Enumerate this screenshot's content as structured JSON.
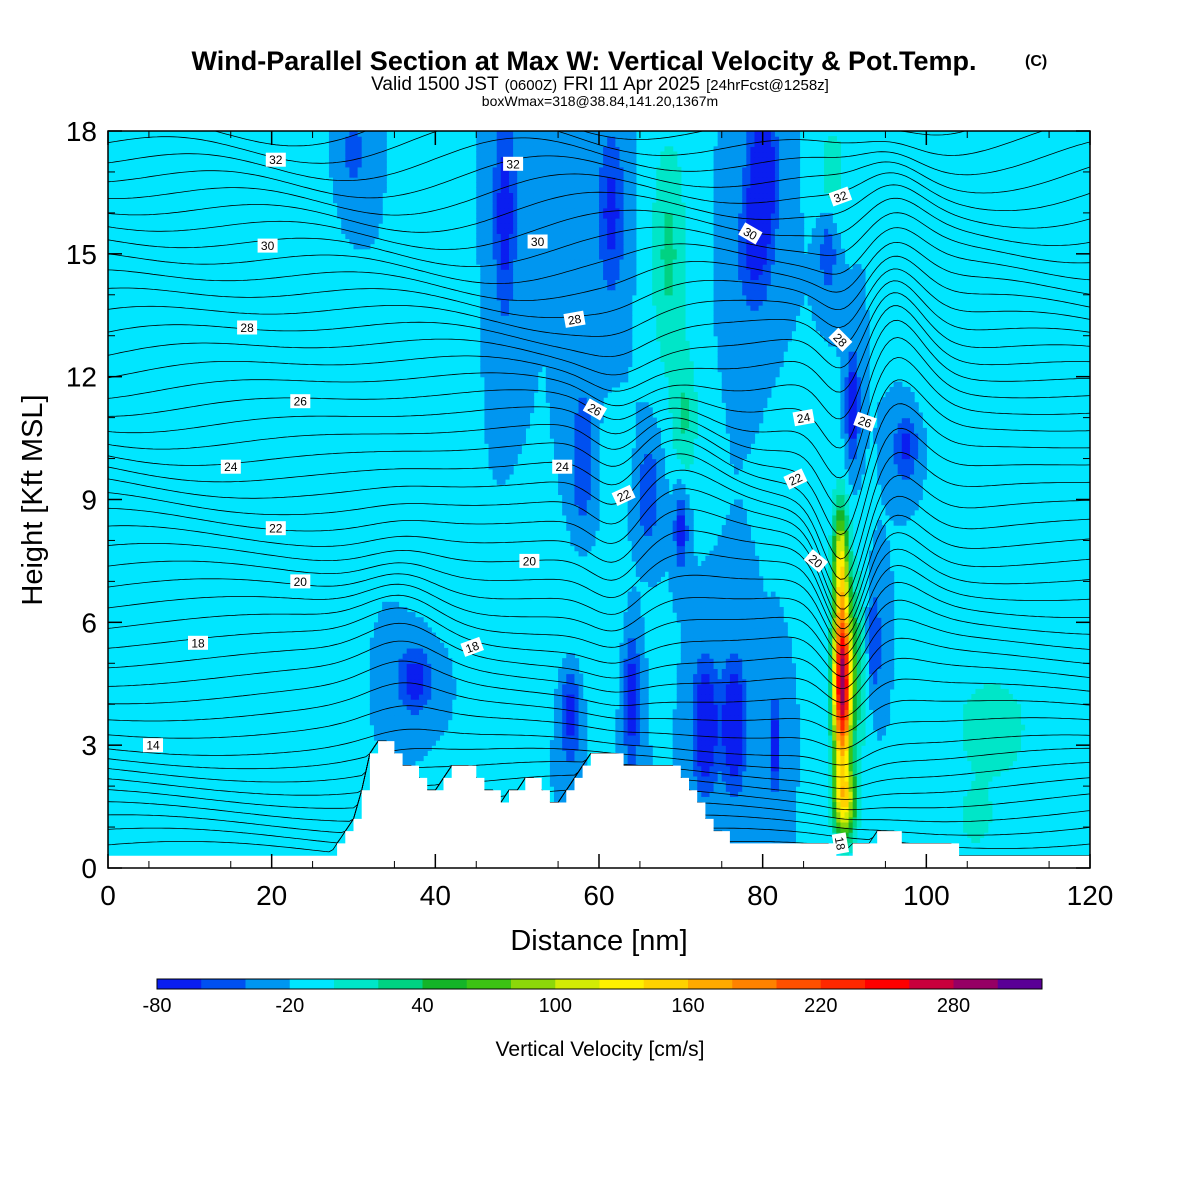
{
  "title": {
    "main": "Wind-Parallel Section at Max W: Vertical Velocity & Pot.Temp.",
    "copyright": "(C)",
    "valid_a": "Valid 1500 JST",
    "valid_b": "(0600Z)",
    "valid_c": "FRI 11 Apr 2025",
    "valid_d": "[24hrFcst@1258z]",
    "box": "boxWmax=318@38.84,141.20,1367m"
  },
  "chart_data": {
    "type": "heatmap",
    "title": "Wind-Parallel Section at Max W: Vertical Velocity & Pot.Temp.",
    "xlabel": "Distance [nm]",
    "ylabel": "Height [Kft MSL]",
    "xlim": [
      0,
      120
    ],
    "ylim": [
      0,
      18
    ],
    "x_ticks": [
      "0",
      "20",
      "40",
      "60",
      "80",
      "100",
      "120"
    ],
    "y_ticks": [
      "0",
      "3",
      "6",
      "9",
      "12",
      "15",
      "18"
    ],
    "colorbar": {
      "label": "Vertical Velocity [cm/s]",
      "tick_labels": [
        "-80",
        "-20",
        "40",
        "100",
        "160",
        "220",
        "280"
      ],
      "levels": [
        -80,
        -60,
        -40,
        -20,
        0,
        20,
        40,
        60,
        80,
        100,
        120,
        140,
        160,
        180,
        200,
        220,
        240,
        260,
        280,
        300,
        320
      ],
      "colors": [
        "#0a1ef0",
        "#0050f0",
        "#0096f0",
        "#00e6ff",
        "#00e6c8",
        "#00d282",
        "#14b428",
        "#3cc314",
        "#8cd70a",
        "#d2eb05",
        "#fff000",
        "#ffd200",
        "#ffaa00",
        "#ff8200",
        "#ff5000",
        "#ff2800",
        "#ff0000",
        "#c8003c",
        "#960064",
        "#5a0096"
      ]
    },
    "background_level": -20,
    "vertical_velocity_features": [
      {
        "x": 89.7,
        "y": 4.5,
        "sx": 1.1,
        "sy": 2.1,
        "w": 300
      },
      {
        "x": 89.5,
        "y": 7.6,
        "sx": 0.9,
        "sy": 1.4,
        "w": 120
      },
      {
        "x": 90.0,
        "y": 1.6,
        "sx": 1.4,
        "sy": 0.9,
        "w": 130
      },
      {
        "x": 91.5,
        "y": 5.0,
        "sx": 1.8,
        "sy": 2.4,
        "w": 45
      },
      {
        "x": 68.5,
        "y": 15.0,
        "sx": 2.2,
        "sy": 3.0,
        "w": 45
      },
      {
        "x": 70.5,
        "y": 11.0,
        "sx": 1.6,
        "sy": 1.6,
        "w": 40
      },
      {
        "x": 88.5,
        "y": 17.0,
        "sx": 1.6,
        "sy": 1.2,
        "w": 35
      },
      {
        "x": 108.0,
        "y": 3.4,
        "sx": 4.5,
        "sy": 1.3,
        "w": 40
      },
      {
        "x": 106.0,
        "y": 1.2,
        "sx": 2.5,
        "sy": 0.8,
        "w": 30
      },
      {
        "x": 20.0,
        "y": 8.0,
        "sx": 5.0,
        "sy": 8.0,
        "w": 18
      },
      {
        "x": 5.0,
        "y": 6.0,
        "sx": 4.0,
        "sy": 6.0,
        "w": 14
      },
      {
        "x": 40.0,
        "y": 13.0,
        "sx": 2.5,
        "sy": 5.0,
        "w": 18
      },
      {
        "x": 58.0,
        "y": 6.0,
        "sx": 6.0,
        "sy": 2.0,
        "w": 14
      },
      {
        "x": 103.0,
        "y": 13.0,
        "sx": 4.0,
        "sy": 3.0,
        "w": 14
      },
      {
        "x": 115.0,
        "y": 10.0,
        "sx": 5.0,
        "sy": 3.0,
        "w": 12
      },
      {
        "x": 86.0,
        "y": 10.0,
        "sx": 2.5,
        "sy": 1.5,
        "w": 20
      },
      {
        "x": 62.0,
        "y": 10.0,
        "sx": 3.0,
        "sy": 1.0,
        "w": 10
      },
      {
        "x": 73.0,
        "y": 3.5,
        "sx": 1.5,
        "sy": 1.5,
        "w": -78
      },
      {
        "x": 76.5,
        "y": 3.5,
        "sx": 1.4,
        "sy": 1.5,
        "w": -80
      },
      {
        "x": 64.0,
        "y": 4.2,
        "sx": 1.0,
        "sy": 1.6,
        "w": -62
      },
      {
        "x": 56.5,
        "y": 3.8,
        "sx": 1.2,
        "sy": 1.2,
        "w": -55
      },
      {
        "x": 37.5,
        "y": 4.6,
        "sx": 2.2,
        "sy": 0.8,
        "w": -55
      },
      {
        "x": 81.5,
        "y": 3.0,
        "sx": 0.7,
        "sy": 1.2,
        "w": -60
      },
      {
        "x": 93.5,
        "y": 5.5,
        "sx": 1.0,
        "sy": 1.5,
        "w": -50
      },
      {
        "x": 91.0,
        "y": 11.3,
        "sx": 0.8,
        "sy": 1.3,
        "w": -65
      },
      {
        "x": 97.5,
        "y": 10.3,
        "sx": 1.5,
        "sy": 0.8,
        "w": -50
      },
      {
        "x": 80.0,
        "y": 17.0,
        "sx": 1.8,
        "sy": 1.5,
        "w": -75
      },
      {
        "x": 79.0,
        "y": 15.0,
        "sx": 2.2,
        "sy": 1.5,
        "w": -45
      },
      {
        "x": 61.5,
        "y": 16.0,
        "sx": 1.6,
        "sy": 2.0,
        "w": -50
      },
      {
        "x": 48.5,
        "y": 16.0,
        "sx": 1.4,
        "sy": 2.5,
        "w": -55
      },
      {
        "x": 58.0,
        "y": 10.0,
        "sx": 1.5,
        "sy": 1.8,
        "w": -40
      },
      {
        "x": 66.0,
        "y": 9.2,
        "sx": 1.5,
        "sy": 1.3,
        "w": -40
      },
      {
        "x": 70.0,
        "y": 8.3,
        "sx": 0.8,
        "sy": 1.0,
        "w": -55
      },
      {
        "x": 88.0,
        "y": 15.0,
        "sx": 1.0,
        "sy": 1.0,
        "w": -40
      },
      {
        "x": 30.0,
        "y": 17.5,
        "sx": 1.5,
        "sy": 1.0,
        "w": -30
      }
    ],
    "terrain_x": [
      0,
      27,
      28,
      29,
      30,
      31,
      32,
      33,
      34,
      35,
      36,
      37,
      38,
      39,
      40,
      41,
      42,
      43,
      44,
      45,
      46,
      47,
      48,
      49,
      50,
      51,
      52,
      53,
      54,
      55,
      56,
      57,
      58,
      59,
      60,
      61,
      62,
      63,
      64,
      65,
      66,
      67,
      68,
      69,
      70,
      71,
      72,
      73,
      74,
      75,
      76,
      77,
      78,
      79,
      80,
      81,
      82,
      83,
      84,
      85,
      86,
      87,
      88,
      89,
      90,
      91,
      92,
      93,
      94,
      95,
      96,
      97,
      98,
      99,
      100,
      101,
      102,
      103,
      104,
      105,
      120
    ],
    "terrain_h": [
      0.3,
      0.3,
      0.6,
      0.9,
      1.2,
      1.9,
      2.8,
      3.1,
      3.1,
      2.8,
      2.5,
      2.5,
      2.2,
      1.9,
      1.9,
      2.2,
      2.5,
      2.5,
      2.5,
      2.2,
      1.9,
      1.9,
      1.6,
      1.9,
      1.9,
      2.2,
      2.2,
      1.9,
      1.6,
      1.6,
      1.9,
      2.2,
      2.5,
      2.8,
      2.8,
      2.8,
      2.8,
      2.5,
      2.5,
      2.5,
      2.5,
      2.5,
      2.5,
      2.5,
      2.2,
      1.9,
      1.6,
      1.2,
      0.9,
      0.9,
      0.6,
      0.6,
      0.6,
      0.6,
      0.6,
      0.6,
      0.6,
      0.6,
      0.6,
      0.6,
      0.6,
      0.6,
      0.6,
      0.3,
      0.3,
      0.6,
      0.6,
      0.6,
      0.9,
      0.9,
      0.9,
      0.6,
      0.6,
      0.6,
      0.6,
      0.6,
      0.6,
      0.6,
      0.3,
      0.3,
      0.3
    ],
    "pot_temp_isentropes": [
      {
        "level": 14,
        "label": "14"
      },
      {
        "level": 18,
        "label": "18"
      },
      {
        "level": 20,
        "label": "20"
      },
      {
        "level": 22,
        "label": "22"
      },
      {
        "level": 24,
        "label": "24"
      },
      {
        "level": 26,
        "label": "26"
      },
      {
        "level": 28,
        "label": "28"
      },
      {
        "level": 30,
        "label": "30"
      },
      {
        "level": 32,
        "label": "32"
      }
    ],
    "contour_labels": [
      {
        "text": "32",
        "x": 20.5,
        "y": 17.3,
        "rot": 0
      },
      {
        "text": "32",
        "x": 49.5,
        "y": 17.2,
        "rot": 0
      },
      {
        "text": "32",
        "x": 89.5,
        "y": 16.4,
        "rot": -20
      },
      {
        "text": "30",
        "x": 19.5,
        "y": 15.2,
        "rot": 0
      },
      {
        "text": "30",
        "x": 52.5,
        "y": 15.3,
        "rot": 0
      },
      {
        "text": "30",
        "x": 78.5,
        "y": 15.5,
        "rot": 30
      },
      {
        "text": "28",
        "x": 17.0,
        "y": 13.2,
        "rot": 0
      },
      {
        "text": "28",
        "x": 57.0,
        "y": 13.4,
        "rot": -10
      },
      {
        "text": "28",
        "x": 89.5,
        "y": 12.9,
        "rot": 45
      },
      {
        "text": "26",
        "x": 23.5,
        "y": 11.4,
        "rot": 0
      },
      {
        "text": "26",
        "x": 59.5,
        "y": 11.2,
        "rot": 30
      },
      {
        "text": "26",
        "x": 92.5,
        "y": 10.9,
        "rot": 20
      },
      {
        "text": "24",
        "x": 15.0,
        "y": 9.8,
        "rot": 0
      },
      {
        "text": "24",
        "x": 55.5,
        "y": 9.8,
        "rot": 0
      },
      {
        "text": "24",
        "x": 85.0,
        "y": 11.0,
        "rot": -10
      },
      {
        "text": "22",
        "x": 20.5,
        "y": 8.3,
        "rot": 0
      },
      {
        "text": "22",
        "x": 63.0,
        "y": 9.1,
        "rot": -25
      },
      {
        "text": "22",
        "x": 84.0,
        "y": 9.5,
        "rot": -25
      },
      {
        "text": "20",
        "x": 23.5,
        "y": 7.0,
        "rot": 0
      },
      {
        "text": "20",
        "x": 51.5,
        "y": 7.5,
        "rot": 0
      },
      {
        "text": "20",
        "x": 86.5,
        "y": 7.5,
        "rot": 40
      },
      {
        "text": "18",
        "x": 11.0,
        "y": 5.5,
        "rot": 0
      },
      {
        "text": "18",
        "x": 44.5,
        "y": 5.4,
        "rot": -20
      },
      {
        "text": "18",
        "x": 89.5,
        "y": 0.6,
        "rot": 80
      },
      {
        "text": "14",
        "x": 5.5,
        "y": 3.0,
        "rot": 0
      }
    ]
  }
}
